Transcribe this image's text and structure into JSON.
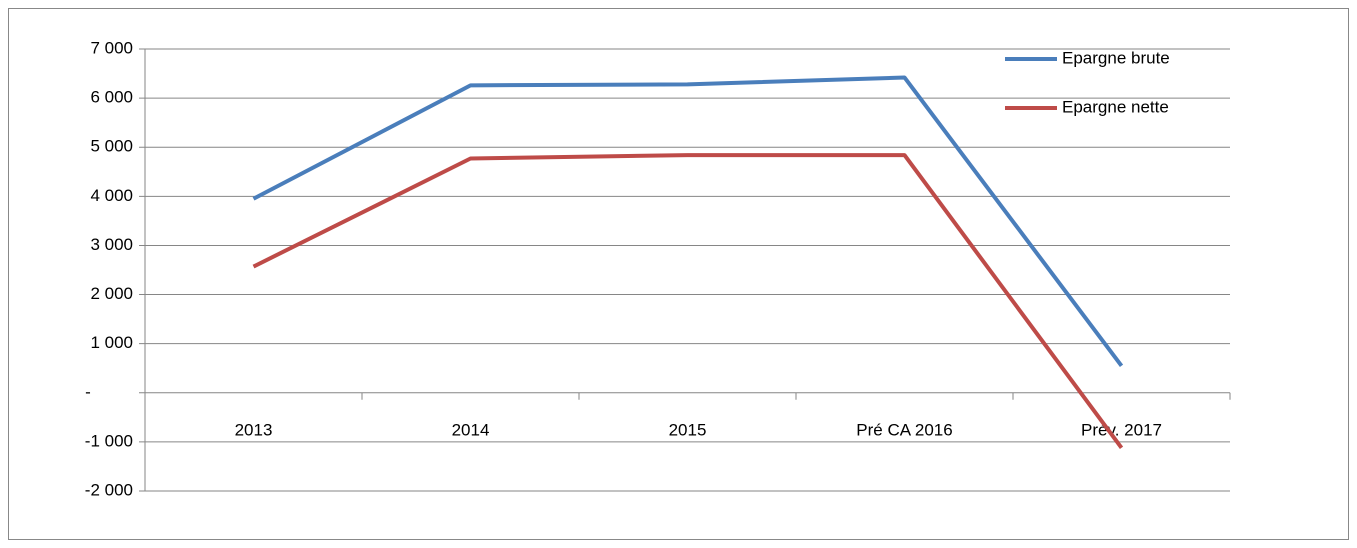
{
  "chart_data": {
    "type": "line",
    "categories": [
      "2013",
      "2014",
      "2015",
      "Pré CA 2016",
      "Prév. 2017"
    ],
    "series": [
      {
        "name": "Epargne brute",
        "color": "#4a7ebb",
        "values": [
          3950,
          6260,
          6280,
          6420,
          550
        ]
      },
      {
        "name": "Epargne nette",
        "color": "#be4b48",
        "values": [
          2570,
          4770,
          4840,
          4840,
          -1120
        ]
      }
    ],
    "ylim": [
      -2000,
      7000
    ],
    "yticks": [
      {
        "value": -2000,
        "label": "-2 000"
      },
      {
        "value": -1000,
        "label": "-1 000"
      },
      {
        "value": 0,
        "label": "-"
      },
      {
        "value": 1000,
        "label": "1 000"
      },
      {
        "value": 2000,
        "label": "2 000"
      },
      {
        "value": 3000,
        "label": "3 000"
      },
      {
        "value": 4000,
        "label": "4 000"
      },
      {
        "value": 5000,
        "label": "5 000"
      },
      {
        "value": 6000,
        "label": "6 000"
      },
      {
        "value": 7000,
        "label": "7 000"
      }
    ],
    "grid": true,
    "legend": "top-right"
  }
}
